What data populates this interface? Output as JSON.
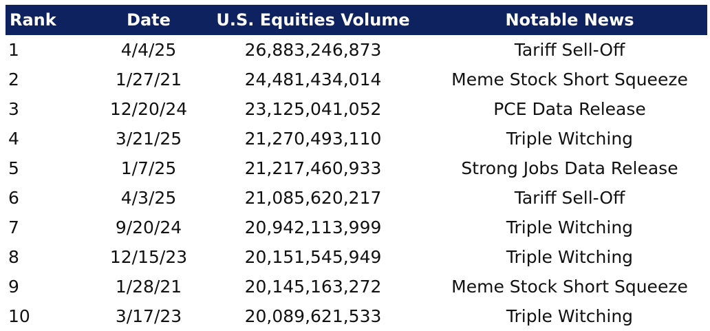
{
  "table": {
    "headers": {
      "rank": "Rank",
      "date": "Date",
      "volume": "U.S. Equities Volume",
      "news": "Notable News"
    },
    "rows": [
      {
        "rank": "1",
        "date": "4/4/25",
        "volume": "26,883,246,873",
        "news": "Tariff Sell-Off"
      },
      {
        "rank": "2",
        "date": "1/27/21",
        "volume": "24,481,434,014",
        "news": "Meme Stock Short Squeeze"
      },
      {
        "rank": "3",
        "date": "12/20/24",
        "volume": "23,125,041,052",
        "news": "PCE Data Release"
      },
      {
        "rank": "4",
        "date": "3/21/25",
        "volume": "21,270,493,110",
        "news": "Triple Witching"
      },
      {
        "rank": "5",
        "date": "1/7/25",
        "volume": "21,217,460,933",
        "news": "Strong Jobs Data Release"
      },
      {
        "rank": "6",
        "date": "4/3/25",
        "volume": "21,085,620,217",
        "news": "Tariff Sell-Off"
      },
      {
        "rank": "7",
        "date": "9/20/24",
        "volume": "20,942,113,999",
        "news": "Triple Witching"
      },
      {
        "rank": "8",
        "date": "12/15/23",
        "volume": "20,151,545,949",
        "news": "Triple Witching"
      },
      {
        "rank": "9",
        "date": "1/28/21",
        "volume": "20,145,163,272",
        "news": "Meme Stock Short Squeeze"
      },
      {
        "rank": "10",
        "date": "3/17/23",
        "volume": "20,089,621,533",
        "news": "Triple Witching"
      }
    ]
  },
  "colors": {
    "header_bg": "#0f2260",
    "header_text": "#ffffff",
    "body_text": "#111111"
  }
}
